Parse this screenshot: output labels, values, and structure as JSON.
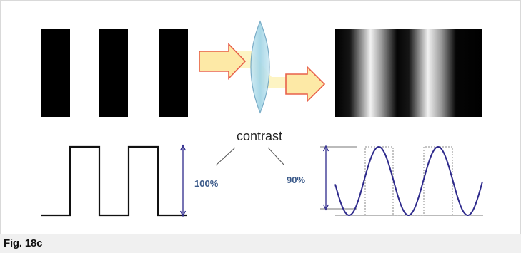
{
  "diagram": {
    "contrast_word": "contrast",
    "left_contrast": "100%",
    "right_contrast": "90%"
  },
  "caption": "Fig. 18c",
  "colors": {
    "bar": "#000000",
    "arrow_fill": "#fde9a6",
    "arrow_stroke": "#e8614a",
    "light_band": "#fdf2b8",
    "lens_fill": "#a9dcea",
    "lens_stroke": "#6fa6c3",
    "curve": "#2e2a8c",
    "label": "#3b5a8a"
  }
}
